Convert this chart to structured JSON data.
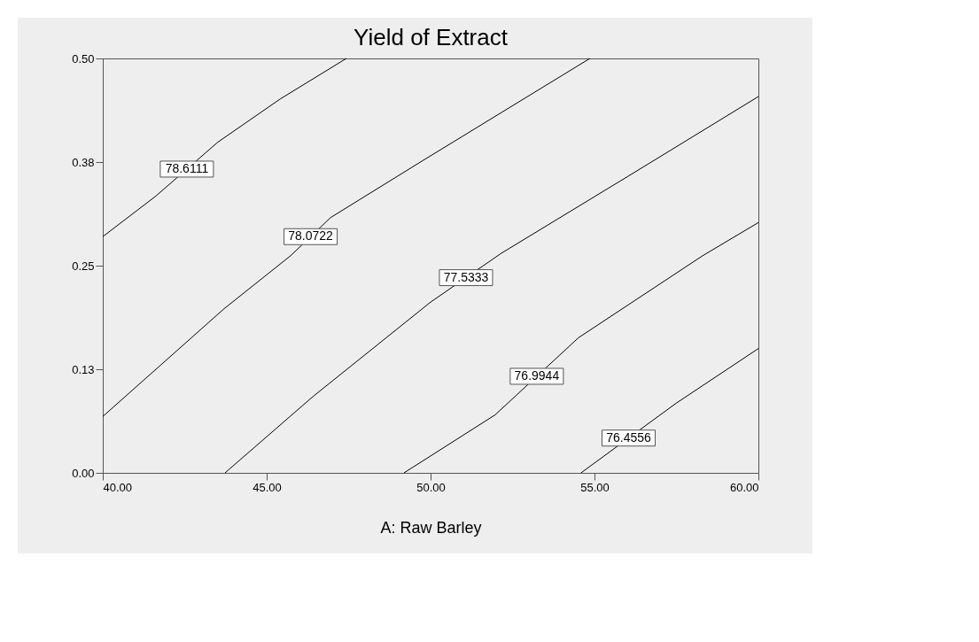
{
  "chart_data": {
    "type": "line",
    "title": "Yield of Extract",
    "xlabel": "A: Raw Barley",
    "xlim": [
      40,
      60
    ],
    "ylim": [
      0,
      0.5
    ],
    "xticks": [
      {
        "value": 40,
        "label": "40.00"
      },
      {
        "value": 45,
        "label": "45.00"
      },
      {
        "value": 50,
        "label": "50.00"
      },
      {
        "value": 55,
        "label": "55.00"
      },
      {
        "value": 60,
        "label": "60.00"
      }
    ],
    "yticks": [
      {
        "value": 0,
        "label": "0.00"
      },
      {
        "value": 0.125,
        "label": "0.13"
      },
      {
        "value": 0.25,
        "label": "0.25"
      },
      {
        "value": 0.375,
        "label": "0.38"
      },
      {
        "value": 0.5,
        "label": "0.50"
      }
    ],
    "grid": false,
    "legend": false,
    "marker": "none",
    "line_style": "solid",
    "series": [
      {
        "name": "78.6111",
        "color": "#000000",
        "x": [
          40,
          41.62,
          43.51,
          45.41,
          47.43
        ],
        "values": [
          0.285,
          0.334,
          0.399,
          0.451,
          0.5
        ]
      },
      {
        "name": "78.0722",
        "color": "#000000",
        "x": [
          40,
          43.7,
          45.73,
          46.95,
          49.73,
          54.86
        ],
        "values": [
          0.068,
          0.198,
          0.262,
          0.308,
          0.376,
          0.5
        ]
      },
      {
        "name": "77.5333",
        "color": "#000000",
        "x": [
          43.73,
          46.41,
          50,
          52.16,
          56.03,
          60
        ],
        "values": [
          0,
          0.092,
          0.206,
          0.265,
          0.358,
          0.454
        ]
      },
      {
        "name": "76.9944",
        "color": "#000000",
        "x": [
          49.19,
          51.97,
          54.51,
          58.3,
          60
        ],
        "values": [
          0,
          0.07,
          0.163,
          0.262,
          0.302
        ]
      },
      {
        "name": "76.4556",
        "color": "#000000",
        "x": [
          54.59,
          57.49,
          60
        ],
        "values": [
          0,
          0.084,
          0.15
        ]
      }
    ]
  }
}
